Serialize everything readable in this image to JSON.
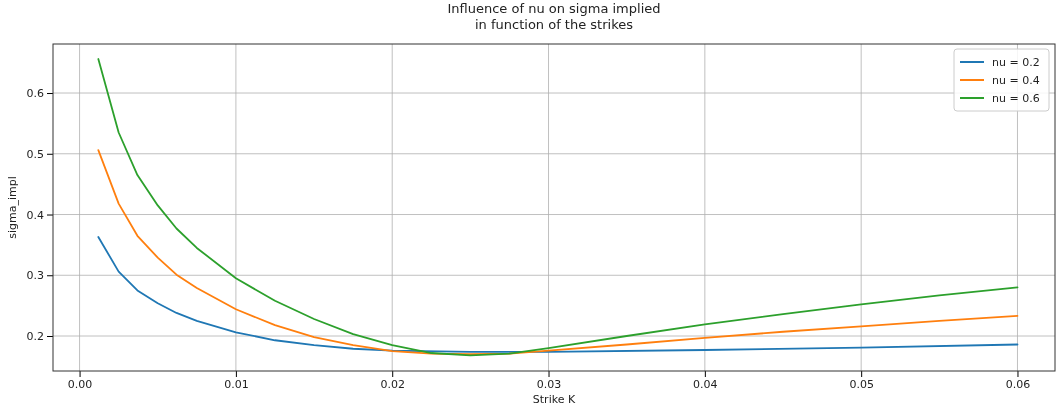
{
  "chart_data": {
    "type": "line",
    "title": "Influence of nu on sigma implied\nin function of the strikes",
    "xlabel": "Strike K",
    "ylabel": "sigma_impl",
    "xlim": [
      -0.0017,
      0.0624
    ],
    "xticks": [
      {
        "value": 0,
        "label": "0.00"
      },
      0.01,
      0.02,
      0.03,
      0.04,
      0.05,
      0.06
    ],
    "ylim": [
      0.1424,
      0.6807
    ],
    "yticks": [
      0.2,
      0.3,
      0.4,
      0.5,
      0.6
    ],
    "grid": true,
    "legend": "top right",
    "line_style": "solid",
    "marker": "none",
    "series": [
      {
        "name": "nu = 0.2",
        "color": "#1f77b4",
        "x": [
          0.0012,
          0.0025,
          0.0037,
          0.005,
          0.0062,
          0.0075,
          0.01,
          0.0125,
          0.015,
          0.0175,
          0.02,
          0.025,
          0.03,
          0.04,
          0.05,
          0.06
        ],
        "values": [
          0.363,
          0.306,
          0.275,
          0.254,
          0.238,
          0.225,
          0.206,
          0.193,
          0.185,
          0.179,
          0.176,
          0.174,
          0.174,
          0.177,
          0.181,
          0.186
        ]
      },
      {
        "name": "nu = 0.4",
        "color": "#ff7f0e",
        "x": [
          0.0012,
          0.0025,
          0.0037,
          0.005,
          0.0062,
          0.0075,
          0.01,
          0.0125,
          0.015,
          0.0175,
          0.02,
          0.0225,
          0.025,
          0.0275,
          0.03,
          0.035,
          0.04,
          0.045,
          0.05,
          0.055,
          0.06
        ],
        "values": [
          0.506,
          0.418,
          0.365,
          0.329,
          0.301,
          0.279,
          0.244,
          0.218,
          0.198,
          0.185,
          0.175,
          0.171,
          0.17,
          0.171,
          0.176,
          0.186,
          0.197,
          0.207,
          0.216,
          0.225,
          0.233
        ]
      },
      {
        "name": "nu = 0.6",
        "color": "#2ca02c",
        "x": [
          0.0012,
          0.0025,
          0.0037,
          0.005,
          0.0062,
          0.0075,
          0.01,
          0.0125,
          0.015,
          0.0175,
          0.02,
          0.0225,
          0.025,
          0.0275,
          0.03,
          0.035,
          0.04,
          0.045,
          0.05,
          0.055,
          0.06
        ],
        "values": [
          0.656,
          0.535,
          0.465,
          0.415,
          0.377,
          0.345,
          0.295,
          0.258,
          0.228,
          0.203,
          0.185,
          0.172,
          0.168,
          0.171,
          0.18,
          0.2,
          0.219,
          0.236,
          0.252,
          0.267,
          0.28
        ]
      }
    ]
  }
}
